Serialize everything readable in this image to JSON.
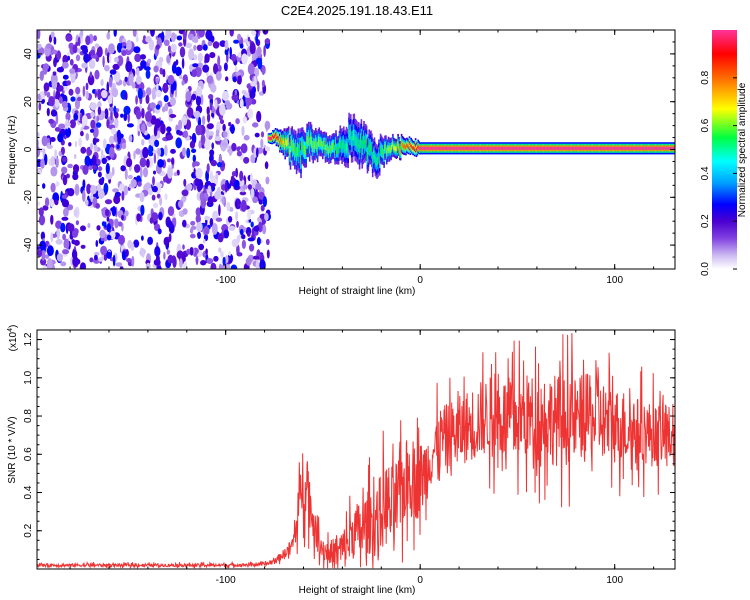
{
  "title": "C2E4.2025.191.18.43.E11",
  "colors": {
    "snr_line": "#ee3333",
    "colormap": [
      "#ffffff",
      "#c9b6f2",
      "#7f3fe0",
      "#4b00d0",
      "#0000ff",
      "#00a0ff",
      "#00ffff",
      "#00ff40",
      "#ffff00",
      "#ff8000",
      "#ff0000",
      "#ff3399"
    ]
  },
  "chart_data": [
    {
      "type": "heatmap",
      "name": "spectrogram",
      "title": "C2E4.2025.191.18.43.E11",
      "xlabel": "Height of straight line (km)",
      "ylabel": "Frequency (Hz)",
      "xlim": [
        -197,
        131
      ],
      "ylim": [
        -50,
        50
      ],
      "x_ticks": [
        -100,
        0,
        100
      ],
      "x_tick_labels": [
        "-100",
        "0",
        "100"
      ],
      "y_ticks": [
        -40,
        -20,
        0,
        20,
        40
      ],
      "y_tick_labels": [
        "-40",
        "-20",
        "0",
        "20",
        "40"
      ],
      "colorbar": {
        "label": "Normalized spectral amplitude",
        "range": [
          0,
          1
        ],
        "ticks": [
          0.0,
          0.2,
          0.4,
          0.6,
          0.8
        ],
        "tick_labels": [
          "0.0",
          "0.2",
          "0.4",
          "0.6",
          "0.8"
        ]
      },
      "regions": [
        {
          "description": "diffuse purple noise",
          "x_range": [
            -197,
            -78
          ],
          "freq_range": [
            -50,
            50
          ],
          "amplitude": 0.2
        },
        {
          "description": "blank",
          "x_range": [
            -78,
            131
          ],
          "freq_range": [
            -50,
            50
          ],
          "amplitude": 0.0
        }
      ],
      "signal_track": {
        "x": [
          -78,
          -74,
          -70,
          -66,
          -62,
          -58,
          -54,
          -50,
          -46,
          -42,
          -38,
          -34,
          -30,
          -26,
          -22,
          -18,
          -14,
          -10,
          -6,
          -2,
          0,
          10,
          20,
          30,
          40,
          50,
          60,
          70,
          80,
          90,
          100,
          110,
          120,
          131
        ],
        "frequency": [
          5,
          5,
          3,
          0,
          -2,
          2,
          3,
          1,
          0,
          1,
          3,
          5,
          2,
          -1,
          -3,
          0,
          1,
          1,
          2,
          1,
          0.5,
          0.5,
          0.5,
          0.5,
          0.5,
          0.5,
          0.5,
          0.5,
          0.5,
          0.5,
          0.5,
          0.5,
          0.5,
          0.5
        ],
        "spread_hz": [
          2,
          3,
          5,
          7,
          8,
          7,
          6,
          5,
          5,
          6,
          8,
          9,
          8,
          7,
          7,
          5,
          4,
          4,
          3,
          3,
          2.5,
          2.5,
          2.5,
          2.5,
          2.5,
          2.5,
          2.5,
          2.5,
          2.5,
          2.5,
          2.5,
          2.5,
          2.5,
          2.5
        ],
        "peak_amplitude": [
          1.0,
          0.9,
          0.7,
          0.6,
          0.55,
          0.6,
          0.6,
          0.6,
          0.6,
          0.55,
          0.5,
          0.5,
          0.55,
          0.55,
          0.5,
          0.6,
          0.65,
          0.75,
          0.85,
          0.9,
          1.0,
          1.0,
          1.0,
          1.0,
          1.0,
          1.0,
          1.0,
          1.0,
          1.0,
          1.0,
          1.0,
          1.0,
          1.0,
          1.0
        ]
      }
    },
    {
      "type": "line",
      "name": "snr",
      "xlabel": "Height of straight line (km)",
      "ylabel": "SNR (10 * V/V)",
      "y_multiplier": "(x10",
      "y_multiplier_exp": "4",
      "y_multiplier_close": ")",
      "xlim": [
        -197,
        131
      ],
      "ylim": [
        0,
        12500
      ],
      "x_ticks": [
        -100,
        0,
        100
      ],
      "x_tick_labels": [
        "-100",
        "0",
        "100"
      ],
      "y_ticks": [
        2000,
        4000,
        6000,
        8000,
        10000,
        12000
      ],
      "y_tick_labels": [
        "0.2",
        "0.4",
        "0.6",
        "0.8",
        "1.0",
        "1.2"
      ],
      "series": [
        {
          "x": [
            -197,
            -180,
            -160,
            -140,
            -120,
            -100,
            -90,
            -80,
            -75,
            -70,
            -66,
            -64,
            -62,
            -60,
            -58,
            -56,
            -54,
            -52,
            -50,
            -46,
            -42,
            -38,
            -34,
            -30,
            -26,
            -22,
            -18,
            -14,
            -10,
            -6,
            -2,
            2,
            6,
            10,
            15,
            20,
            25,
            30,
            35,
            40,
            45,
            50,
            55,
            60,
            65,
            70,
            75,
            80,
            85,
            90,
            95,
            100,
            105,
            110,
            115,
            120,
            125,
            131
          ],
          "mean": [
            200,
            200,
            200,
            200,
            200,
            200,
            220,
            250,
            400,
            800,
            1200,
            2000,
            3500,
            5000,
            4500,
            3000,
            2000,
            1500,
            1000,
            800,
            900,
            1200,
            2000,
            2000,
            2500,
            2500,
            3500,
            3000,
            4000,
            5000,
            4500,
            5000,
            6000,
            6800,
            7000,
            7200,
            7500,
            7800,
            8000,
            8000,
            7800,
            7800,
            8000,
            7800,
            8000,
            7800,
            7800,
            7800,
            8000,
            7800,
            7800,
            7500,
            7500,
            7200,
            7200,
            7000,
            7000,
            7000
          ],
          "amp": [
            100,
            100,
            100,
            100,
            100,
            100,
            100,
            100,
            200,
            300,
            500,
            1000,
            1500,
            2500,
            2000,
            1500,
            1000,
            800,
            800,
            900,
            1200,
            1500,
            1800,
            2000,
            2200,
            2500,
            2800,
            3000,
            2800,
            2500,
            2500,
            2300,
            2000,
            2000,
            2200,
            2300,
            2400,
            2500,
            2600,
            2700,
            2800,
            2800,
            2800,
            2900,
            3000,
            3000,
            3000,
            2800,
            2800,
            2700,
            2600,
            2500,
            2400,
            2300,
            2200,
            2100,
            2000,
            1900
          ]
        }
      ]
    }
  ]
}
